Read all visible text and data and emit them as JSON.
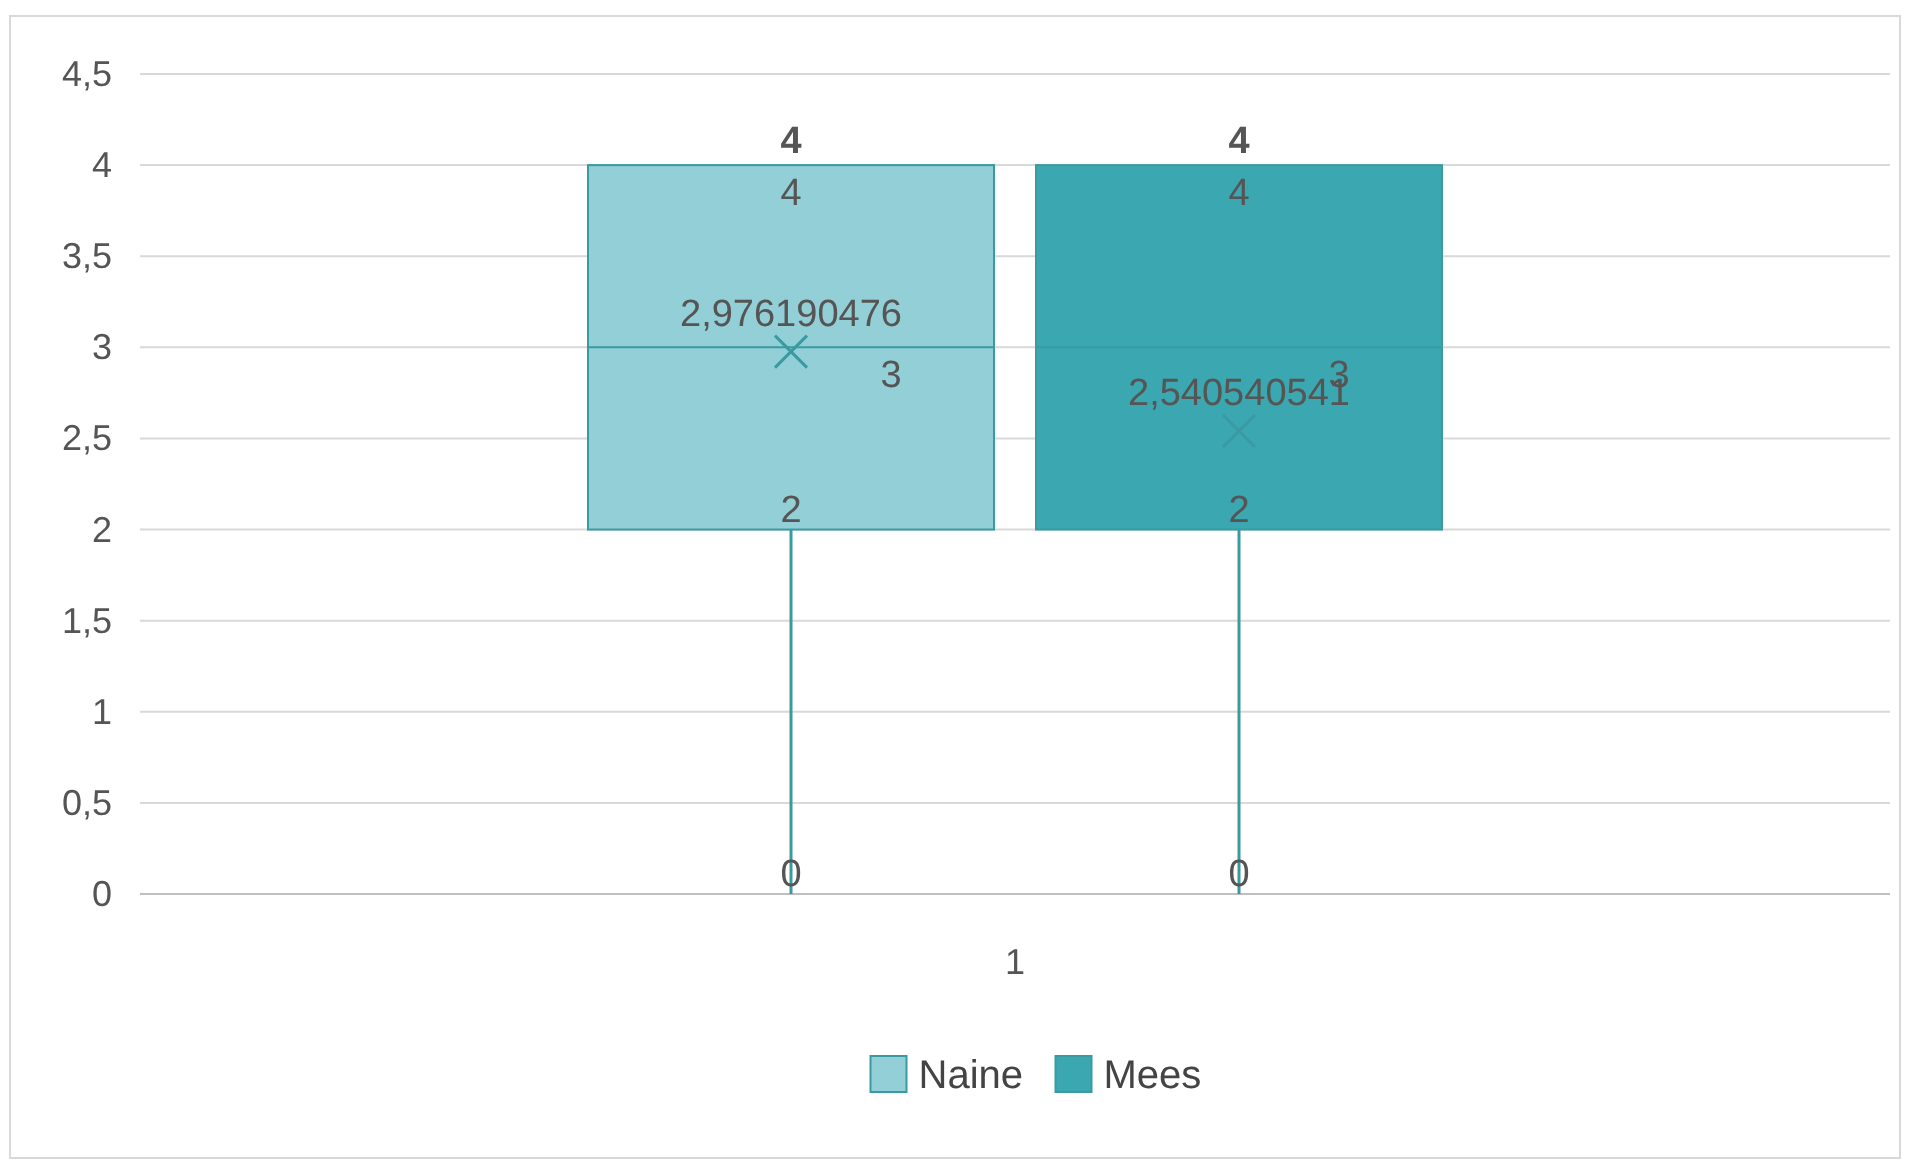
{
  "chart_data": {
    "type": "box",
    "categories": [
      "1"
    ],
    "ylim": [
      0,
      4.5
    ],
    "yticks": [
      0,
      {
        "value": 0.5,
        "label": "0,5"
      },
      1,
      {
        "value": 1.5,
        "label": "1,5"
      },
      2,
      {
        "value": 2.5,
        "label": "2,5"
      },
      3,
      {
        "value": 3.5,
        "label": "3,5"
      },
      4,
      {
        "value": 4.5,
        "label": "4,5"
      }
    ],
    "grid": "y",
    "legend": "bottom",
    "marker": "cross",
    "series": [
      {
        "name": "Naine",
        "color": "#92cfd6",
        "boxes": [
          {
            "low": 0,
            "q1": 2,
            "median": 3,
            "q3": 4,
            "high": 4,
            "mean": 2.976190476
          }
        ]
      },
      {
        "name": "Mees",
        "color": "#3ba7b0",
        "boxes": [
          {
            "low": 0,
            "q1": 2,
            "median": 3,
            "q3": 4,
            "high": 4,
            "mean": 2.540540541
          }
        ]
      }
    ],
    "annotations": [
      "4",
      "4",
      "3",
      "2,976190476",
      "2",
      "0",
      "4",
      "4",
      "3",
      "2,540540541",
      "2",
      "0"
    ]
  }
}
